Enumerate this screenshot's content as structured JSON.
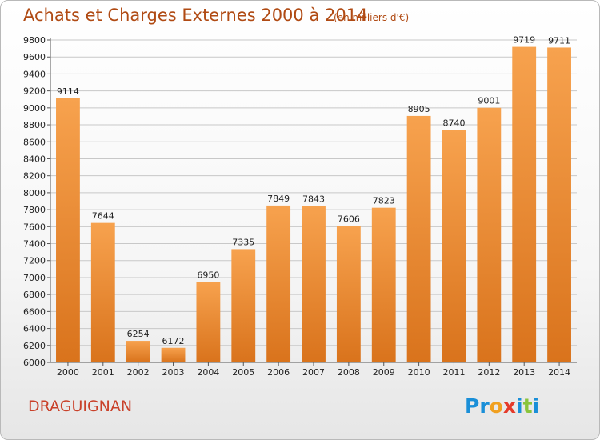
{
  "header": {
    "title": "Achats et Charges Externes 2000 à 2014",
    "subtitle": "(en milliers d'€)"
  },
  "footer": {
    "place": "DRAGUIGNAN",
    "logo_text": "Proxiti",
    "logo_letters": [
      "P",
      "r",
      "o",
      "x",
      "i",
      "t",
      "i"
    ],
    "logo_colors": [
      "#1a8fd8",
      "#1a8fd8",
      "#f0a020",
      "#e53a2a",
      "#1a8fd8",
      "#8ac43c",
      "#1a8fd8"
    ]
  },
  "colors": {
    "bar_light": "#f7a24e",
    "bar_dark": "#d9731c",
    "title": "#b04a13",
    "place": "#c9412a"
  },
  "chart_data": {
    "type": "bar",
    "title": "Achats et Charges Externes 2000 à 2014",
    "subtitle": "(en milliers d'€)",
    "categories": [
      "2000",
      "2001",
      "2002",
      "2003",
      "2004",
      "2005",
      "2006",
      "2007",
      "2008",
      "2009",
      "2010",
      "2011",
      "2012",
      "2013",
      "2014"
    ],
    "values": [
      9114,
      7644,
      6254,
      6172,
      6950,
      7335,
      7849,
      7843,
      7606,
      7823,
      8905,
      8740,
      9001,
      9719,
      9711
    ],
    "ylim": [
      6000,
      9800
    ],
    "yticks": [
      "6000",
      "6200",
      "6400",
      "6600",
      "6800",
      "7000",
      "7200",
      "7400",
      "7600",
      "7800",
      "8000",
      "8200",
      "8400",
      "8600",
      "8800",
      "9000",
      "9200",
      "9400",
      "9600",
      "9800"
    ],
    "grid": true,
    "legend": "none"
  }
}
